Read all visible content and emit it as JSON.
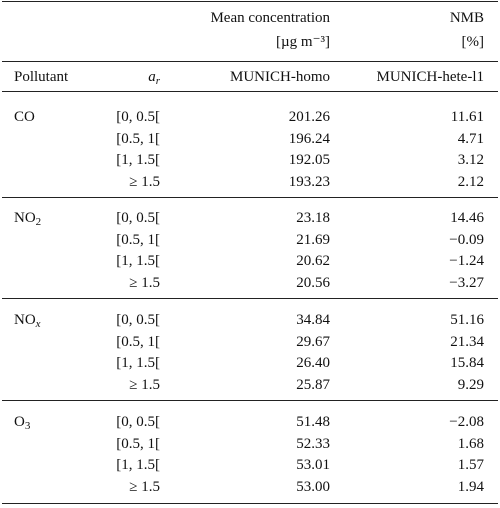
{
  "header": {
    "mean_title": "Mean concentration",
    "mean_unit": "[µg m⁻³]",
    "nmb_title": "NMB",
    "nmb_unit": "[%]",
    "columns": [
      "Pollutant",
      {
        "base": "a",
        "sub": "r"
      },
      "MUNICH-homo",
      "MUNICH-hete-l1"
    ]
  },
  "groups": [
    {
      "pollutant": {
        "base": "CO",
        "sub": ""
      },
      "rows": [
        [
          "[0, 0.5[",
          "201.26",
          "11.61"
        ],
        [
          "[0.5, 1[",
          "196.24",
          "4.71"
        ],
        [
          "[1, 1.5[",
          "192.05",
          "3.12"
        ],
        [
          "≥ 1.5",
          "193.23",
          "2.12"
        ]
      ]
    },
    {
      "pollutant": {
        "base": "NO",
        "sub": "2"
      },
      "rows": [
        [
          "[0, 0.5[",
          "23.18",
          "14.46"
        ],
        [
          "[0.5, 1[",
          "21.69",
          "−0.09"
        ],
        [
          "[1, 1.5[",
          "20.62",
          "−1.24"
        ],
        [
          "≥ 1.5",
          "20.56",
          "−3.27"
        ]
      ]
    },
    {
      "pollutant": {
        "base": "NO",
        "sub": "x"
      },
      "rows": [
        [
          "[0, 0.5[",
          "34.84",
          "51.16"
        ],
        [
          "[0.5, 1[",
          "29.67",
          "21.34"
        ],
        [
          "[1, 1.5[",
          "26.40",
          "15.84"
        ],
        [
          "≥ 1.5",
          "25.87",
          "9.29"
        ]
      ]
    },
    {
      "pollutant": {
        "base": "O",
        "sub": "3"
      },
      "rows": [
        [
          "[0, 0.5[",
          "51.48",
          "−2.08"
        ],
        [
          "[0.5, 1[",
          "52.33",
          "1.68"
        ],
        [
          "[1, 1.5[",
          "53.01",
          "1.57"
        ],
        [
          "≥ 1.5",
          "53.00",
          "1.94"
        ]
      ]
    }
  ]
}
